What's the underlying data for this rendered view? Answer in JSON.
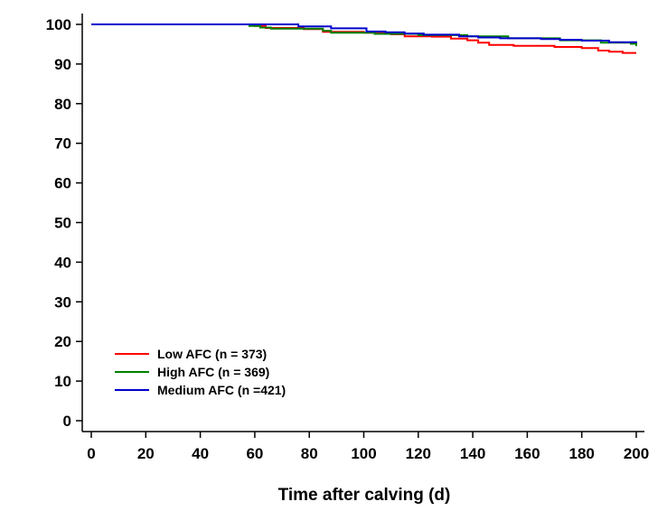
{
  "chart_data": {
    "type": "line",
    "title": "",
    "xlabel": "Time after calving (d)",
    "ylabel": "",
    "xlim": [
      0,
      200
    ],
    "ylim": [
      0,
      100
    ],
    "xticks": [
      0,
      20,
      40,
      60,
      80,
      100,
      120,
      140,
      160,
      180,
      200
    ],
    "yticks": [
      0,
      10,
      20,
      30,
      40,
      50,
      60,
      70,
      80,
      90,
      100
    ],
    "grid": false,
    "legend_position": "bottom-left",
    "series": [
      {
        "name": "Low AFC (n = 373)",
        "color": "#ff0000",
        "points": [
          [
            0,
            100
          ],
          [
            58,
            100
          ],
          [
            60,
            99.6
          ],
          [
            64,
            99.1
          ],
          [
            78,
            98.8
          ],
          [
            85,
            98.1
          ],
          [
            100,
            97.9
          ],
          [
            110,
            97.5
          ],
          [
            115,
            97.0
          ],
          [
            125,
            96.9
          ],
          [
            132,
            96.4
          ],
          [
            138,
            96.0
          ],
          [
            142,
            95.4
          ],
          [
            146,
            94.8
          ],
          [
            155,
            94.6
          ],
          [
            165,
            94.6
          ],
          [
            170,
            94.3
          ],
          [
            180,
            94.0
          ],
          [
            186,
            93.4
          ],
          [
            190,
            93.1
          ],
          [
            195,
            92.8
          ],
          [
            200,
            92.8
          ]
        ]
      },
      {
        "name": "High AFC (n = 369)",
        "color": "#008000",
        "points": [
          [
            0,
            100
          ],
          [
            55,
            100
          ],
          [
            58,
            99.6
          ],
          [
            62,
            99.2
          ],
          [
            66,
            98.9
          ],
          [
            80,
            98.9
          ],
          [
            85,
            98.4
          ],
          [
            88,
            97.9
          ],
          [
            100,
            97.9
          ],
          [
            104,
            97.6
          ],
          [
            115,
            97.6
          ],
          [
            120,
            97.3
          ],
          [
            135,
            97.3
          ],
          [
            138,
            97.0
          ],
          [
            150,
            97.0
          ],
          [
            153,
            96.5
          ],
          [
            170,
            96.5
          ],
          [
            172,
            96.0
          ],
          [
            185,
            96.0
          ],
          [
            187,
            95.4
          ],
          [
            198,
            95.1
          ],
          [
            200,
            94.5
          ]
        ]
      },
      {
        "name": "Medium AFC (n =421)",
        "color": "#0000cc",
        "points": [
          [
            0,
            100
          ],
          [
            73,
            100
          ],
          [
            76,
            99.5
          ],
          [
            87,
            99.5
          ],
          [
            88,
            99.0
          ],
          [
            100,
            99.0
          ],
          [
            101,
            98.2
          ],
          [
            108,
            98.0
          ],
          [
            115,
            97.7
          ],
          [
            122,
            97.4
          ],
          [
            135,
            97.0
          ],
          [
            142,
            96.7
          ],
          [
            150,
            96.5
          ],
          [
            165,
            96.3
          ],
          [
            172,
            96.1
          ],
          [
            180,
            95.9
          ],
          [
            190,
            95.5
          ],
          [
            200,
            95.3
          ]
        ]
      }
    ]
  }
}
